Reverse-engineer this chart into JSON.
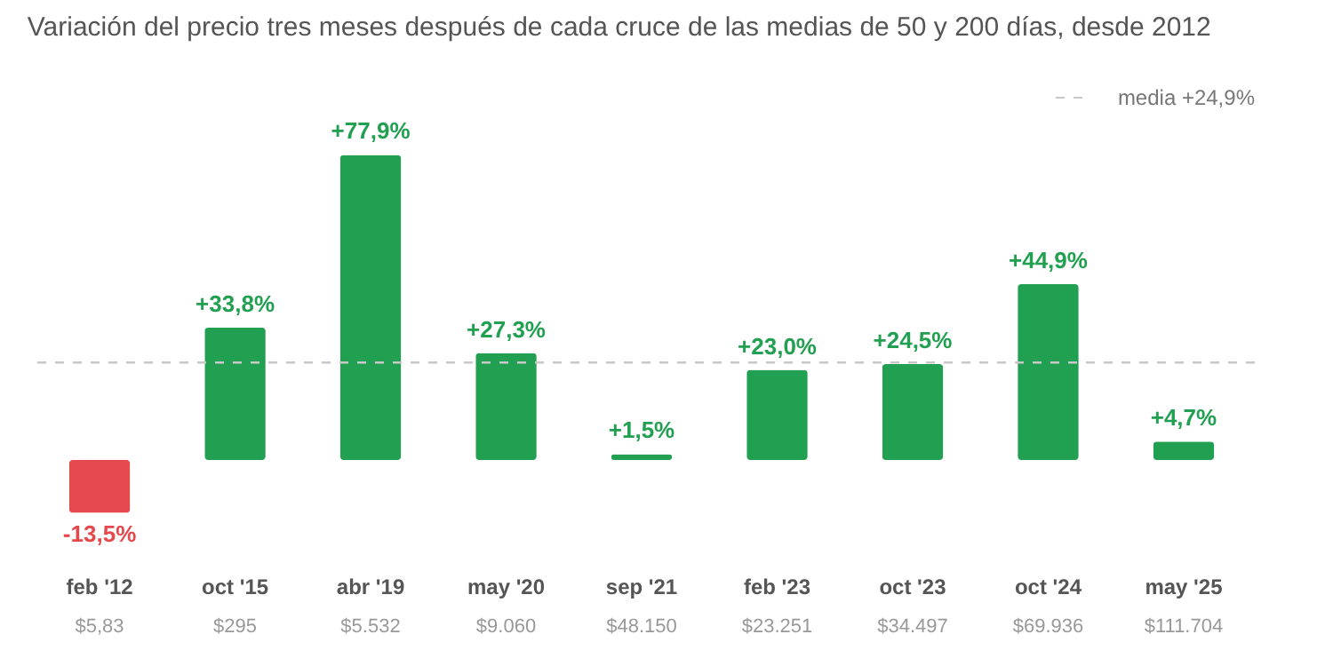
{
  "chart_data": {
    "type": "bar",
    "title": "Variación del precio tres meses después de cada cruce de las medias de 50 y 200 días, desde 2012",
    "categories": [
      "feb '12",
      "oct '15",
      "abr '19",
      "may '20",
      "sep '21",
      "feb '23",
      "oct '23",
      "oct '24",
      "may '25"
    ],
    "values": [
      -13.5,
      33.8,
      77.9,
      27.3,
      1.5,
      23.0,
      24.5,
      44.9,
      4.7
    ],
    "colors": [
      "#e5484d",
      "#22a052",
      "#22a052",
      "#22a052",
      "#22a052",
      "#22a052",
      "#22a052",
      "#22a052",
      "#22a052"
    ],
    "value_labels": [
      "-13,5%",
      "+33,8%",
      "+77,9%",
      "+27,3%",
      "+1,5%",
      "+23,0%",
      "+24,5%",
      "+44,9%",
      "+4,7%"
    ],
    "annotations": [
      "$5,83",
      "$295",
      "$5.532",
      "$9.060",
      "$48.150",
      "$23.251",
      "$34.497",
      "$69.936",
      "$111.704"
    ],
    "ref_lines": [
      {
        "axis": "y",
        "value": 24.9,
        "label": "media +24,9%",
        "color": "#c8c8c8",
        "line_style": "dashed"
      }
    ]
  }
}
